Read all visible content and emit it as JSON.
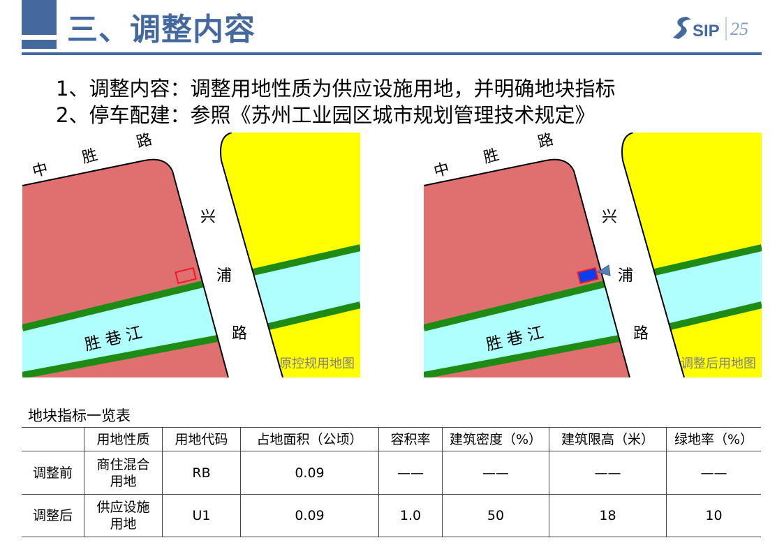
{
  "header": {
    "title": "三、调整内容",
    "logo_text": "SIP",
    "logo_color": "#44699e",
    "accent": "#44699e"
  },
  "bullets": [
    "1、调整内容：调整用地性质为供应设施用地，并明确地块指标",
    "2、停车配建：参照《苏州工业园区城市规划管理技术规定》"
  ],
  "maps": [
    {
      "caption": "原控规用地图",
      "road_north": [
        "中",
        "胜",
        "路"
      ],
      "road_east": [
        "兴",
        "浦",
        "路"
      ],
      "river": "胜 巷 江",
      "marker": "outline-red"
    },
    {
      "caption": "调整后用地图",
      "road_north": [
        "中",
        "胜",
        "路"
      ],
      "road_east": [
        "兴",
        "浦",
        "路"
      ],
      "river": "胜 巷 江",
      "marker": "blue-filled-with-arrow"
    }
  ],
  "colors": {
    "commercial": "#e07070",
    "green": "#1e8c14",
    "river": "#b0ffff",
    "yellow": "#ffff00",
    "marker_fill": "#0a3cf0",
    "marker_stroke": "#e81c24",
    "arrow": "#5a7fb8"
  },
  "table": {
    "title": "地块指标一览表",
    "headers": [
      "",
      "用地性质",
      "用地代码",
      "占地面积（公顷）",
      "容积率",
      "建筑密度（%）",
      "建筑限高（米）",
      "绿地率（%）"
    ],
    "rows": [
      [
        "调整前",
        "商住混合\n用地",
        "RB",
        "0.09",
        "——",
        "——",
        "——",
        "——"
      ],
      [
        "调整后",
        "供应设施\n用地",
        "U1",
        "0.09",
        "1.0",
        "50",
        "18",
        "10"
      ]
    ]
  }
}
